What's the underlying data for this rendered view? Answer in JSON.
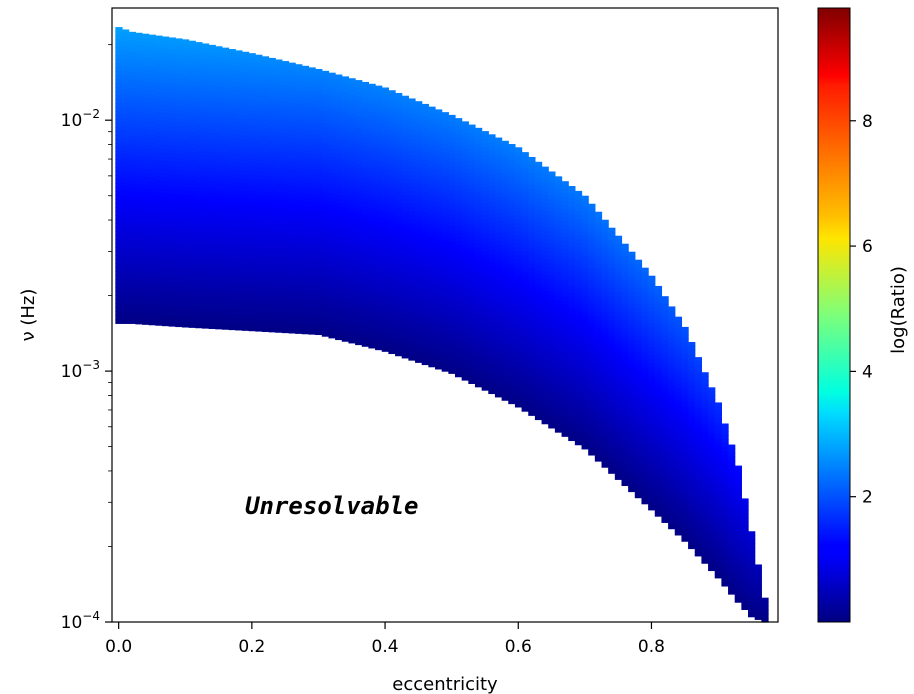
{
  "chart_data": {
    "type": "heatmap",
    "title": "",
    "xlabel": "eccentricity",
    "ylabel": "ν (Hz)",
    "colorbar_label": "log(Ratio)",
    "colormap": "jet",
    "xlim": [
      -0.01,
      0.99
    ],
    "ylim": [
      0.0001,
      0.028
    ],
    "yscale": "log",
    "x_ticks": [
      0.0,
      0.2,
      0.4,
      0.6,
      0.8
    ],
    "x_tick_labels": [
      "0.0",
      "0.2",
      "0.4",
      "0.6",
      "0.8"
    ],
    "y_ticks": [
      {
        "value": 0.0001,
        "base": "10",
        "exp": "−4"
      },
      {
        "value": 0.001,
        "base": "10",
        "exp": "−3"
      },
      {
        "value": 0.01,
        "base": "10",
        "exp": "−2"
      }
    ],
    "colorbar_ticks": [
      2,
      4,
      6,
      8
    ],
    "colorbar_tick_labels": [
      "2",
      "4",
      "6",
      "8"
    ],
    "colorbar_range": [
      0,
      9.8
    ],
    "eccentricity_bin_width": 0.01,
    "boundary_eccentricity": [
      0.0,
      0.02,
      0.1,
      0.2,
      0.3,
      0.4,
      0.5,
      0.6,
      0.7,
      0.8,
      0.85,
      0.9,
      0.93,
      0.95,
      0.97
    ],
    "boundary_nu_upper": [
      0.0235,
      0.0225,
      0.021,
      0.0185,
      0.016,
      0.0135,
      0.0105,
      0.0078,
      0.005,
      0.0024,
      0.0015,
      0.00075,
      0.00042,
      0.00023,
      0.000125
    ],
    "boundary_nu_lower": [
      0.00155,
      0.00155,
      0.0015,
      0.00145,
      0.0014,
      0.0012,
      0.00098,
      0.00072,
      0.00049,
      0.00028,
      0.00021,
      0.00015,
      0.00012,
      0.000105,
      0.0001
    ],
    "annotations": [
      {
        "text": "Unresolvable",
        "x": 0.32,
        "y": 0.00029
      }
    ],
    "grid": false
  }
}
